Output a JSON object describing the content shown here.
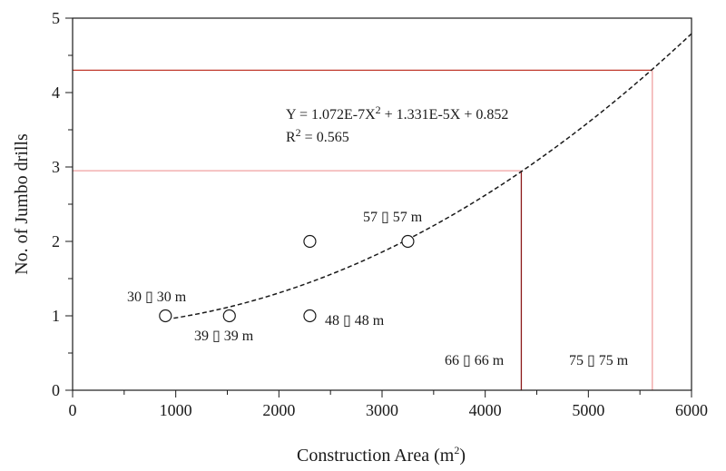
{
  "chart_data": {
    "type": "scatter",
    "xlabel_main": "Construction Area (m",
    "xlabel_sup": "2",
    "xlabel_end": ")",
    "ylabel": "No. of Jumbo drills",
    "xlim": [
      0,
      6000
    ],
    "ylim": [
      0,
      5
    ],
    "x_ticks": [
      "0",
      "1000",
      "2000",
      "3000",
      "4000",
      "5000",
      "6000"
    ],
    "y_ticks": [
      "0",
      "1",
      "2",
      "3",
      "4",
      "5"
    ],
    "points": [
      {
        "x": 900,
        "y": 1,
        "label": "30 ▯ 30 m"
      },
      {
        "x": 1520,
        "y": 1,
        "label": "39 ▯ 39 m"
      },
      {
        "x": 2300,
        "y": 1,
        "label": "48 ▯ 48 m"
      },
      {
        "x": 2300,
        "y": 2,
        "label": ""
      },
      {
        "x": 3250,
        "y": 2,
        "label": "57 ▯ 57 m"
      }
    ],
    "fit": {
      "a": 1.072e-07,
      "b": 1.331e-05,
      "c": 0.852,
      "x_start": 980,
      "x_end": 6000,
      "equation_main": "Y = 1.072E-7X",
      "equation_sup": "2",
      "equation_rest": " + 1.331E-5X + 0.852",
      "r2_main": "R",
      "r2_sup": "2",
      "r2_rest": " = 0.565"
    },
    "reference_markers": [
      {
        "x": 4350,
        "y": 2.95,
        "label": "66 ▯ 66 m"
      },
      {
        "x": 5620,
        "y": 4.3,
        "label": "75 ▯ 75 m"
      }
    ],
    "colors": {
      "axis": "#1a1a1a",
      "fit_line": "#1a1a1a",
      "marker_66_vertical": "#8b1a1a",
      "marker_66_horizontal": "#f0a0a0",
      "marker_75_vertical": "#f0a0a0",
      "marker_75_horizontal": "#c0392b"
    }
  }
}
